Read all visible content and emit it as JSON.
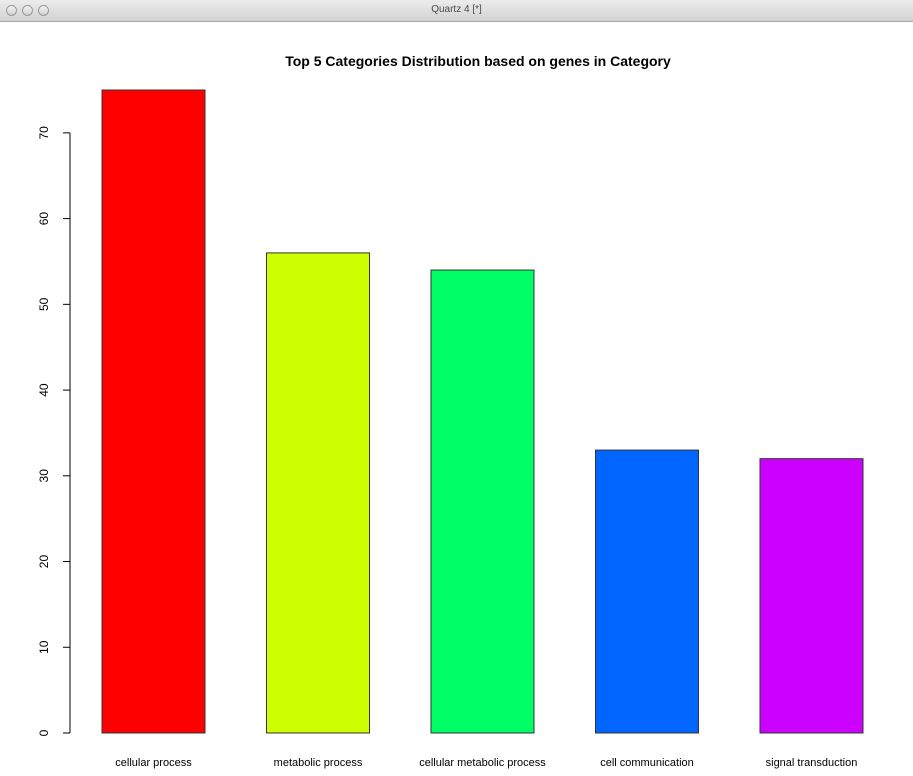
{
  "window": {
    "title": "Quartz 4 [*]"
  },
  "chart_data": {
    "type": "bar",
    "title": "Top 5 Categories Distribution based on genes in Category",
    "xlabel": "",
    "ylabel": "",
    "categories": [
      "cellular process",
      "metabolic process",
      "cellular metabolic process",
      "cell communication",
      "signal transduction"
    ],
    "values": [
      75,
      56,
      54,
      33,
      32
    ],
    "colors": [
      "#ff0000",
      "#ccff00",
      "#00ff66",
      "#0066ff",
      "#cc00ff"
    ],
    "ylim": [
      0,
      75
    ],
    "yticks": [
      0,
      10,
      20,
      30,
      40,
      50,
      60,
      70
    ],
    "grid": false,
    "legend": "none"
  }
}
